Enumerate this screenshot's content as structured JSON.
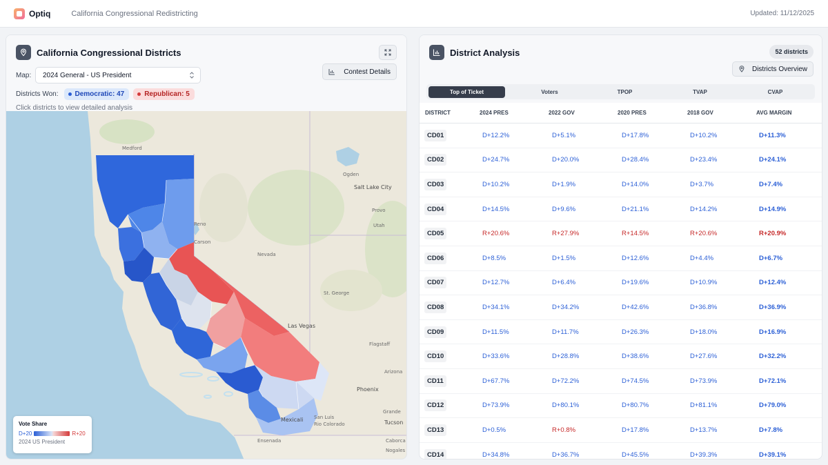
{
  "app": {
    "name": "Optiq",
    "subtitle": "California Congressional Redistricting",
    "updated": "Updated: 11/12/2025"
  },
  "map_panel": {
    "title": "California Congressional Districts",
    "map_label": "Map:",
    "map_selected": "2024 General - US President",
    "contest_button": "Contest Details",
    "won_label": "Districts Won:",
    "dem_pill": "Democratic: 47",
    "rep_pill": "Republican: 5",
    "hint": "Click districts to view detailed analysis",
    "legend": {
      "title": "Vote Share",
      "left": "D+20",
      "right": "R+20",
      "subtitle": "2024 US President"
    },
    "basemap_labels": {
      "medford": "Medford",
      "ogden": "Ogden",
      "slc": "Salt Lake City",
      "provo": "Provo",
      "utah": "Utah",
      "nevada": "Nevada",
      "reno": "Reno",
      "carson": "Carson",
      "stgeorge": "St. George",
      "lasvegas": "Las Vegas",
      "flagstaff": "Flagstaff",
      "arizona": "Arizona",
      "phoenix": "Phoenix",
      "tucson": "Tucson",
      "mexicali": "Mexicali",
      "sanluis": "San Luis",
      "riocolorado": "Rio Colorado",
      "ensenada": "Ensenada",
      "caborca": "Caborca",
      "nogales": "Nogales",
      "grande": "Grande"
    },
    "colors": {
      "dem_strong": "#2b5fd6",
      "dem_mid": "#4e86e8",
      "dem_light": "#9dbcf2",
      "rep_strong": "#e54848",
      "rep_light": "#f2a3a3",
      "ocean": "#aed0e4",
      "land": "#ece8dc"
    }
  },
  "analysis_panel": {
    "title": "District Analysis",
    "count": "52 districts",
    "overview_button": "Districts Overview",
    "tabs": [
      "Top of Ticket",
      "Voters",
      "TPOP",
      "TVAP",
      "CVAP"
    ],
    "columns": [
      "DISTRICT",
      "2024 PRES",
      "2022 GOV",
      "2020 PRES",
      "2018 GOV",
      "AVG MARGIN"
    ],
    "rows": [
      [
        "CD01",
        "D+12.2%",
        "D+5.1%",
        "D+17.8%",
        "D+10.2%",
        "D+11.3%"
      ],
      [
        "CD02",
        "D+24.7%",
        "D+20.0%",
        "D+28.4%",
        "D+23.4%",
        "D+24.1%"
      ],
      [
        "CD03",
        "D+10.2%",
        "D+1.9%",
        "D+14.0%",
        "D+3.7%",
        "D+7.4%"
      ],
      [
        "CD04",
        "D+14.5%",
        "D+9.6%",
        "D+21.1%",
        "D+14.2%",
        "D+14.9%"
      ],
      [
        "CD05",
        "R+20.6%",
        "R+27.9%",
        "R+14.5%",
        "R+20.6%",
        "R+20.9%"
      ],
      [
        "CD06",
        "D+8.5%",
        "D+1.5%",
        "D+12.6%",
        "D+4.4%",
        "D+6.7%"
      ],
      [
        "CD07",
        "D+12.7%",
        "D+6.4%",
        "D+19.6%",
        "D+10.9%",
        "D+12.4%"
      ],
      [
        "CD08",
        "D+34.1%",
        "D+34.2%",
        "D+42.6%",
        "D+36.8%",
        "D+36.9%"
      ],
      [
        "CD09",
        "D+11.5%",
        "D+11.7%",
        "D+26.3%",
        "D+18.0%",
        "D+16.9%"
      ],
      [
        "CD10",
        "D+33.6%",
        "D+28.8%",
        "D+38.6%",
        "D+27.6%",
        "D+32.2%"
      ],
      [
        "CD11",
        "D+67.7%",
        "D+72.2%",
        "D+74.5%",
        "D+73.9%",
        "D+72.1%"
      ],
      [
        "CD12",
        "D+73.9%",
        "D+80.1%",
        "D+80.7%",
        "D+81.1%",
        "D+79.0%"
      ],
      [
        "CD13",
        "D+0.5%",
        "R+0.8%",
        "D+17.8%",
        "D+13.7%",
        "D+7.8%"
      ],
      [
        "CD14",
        "D+34.8%",
        "D+36.7%",
        "D+45.5%",
        "D+39.3%",
        "D+39.1%"
      ]
    ]
  }
}
